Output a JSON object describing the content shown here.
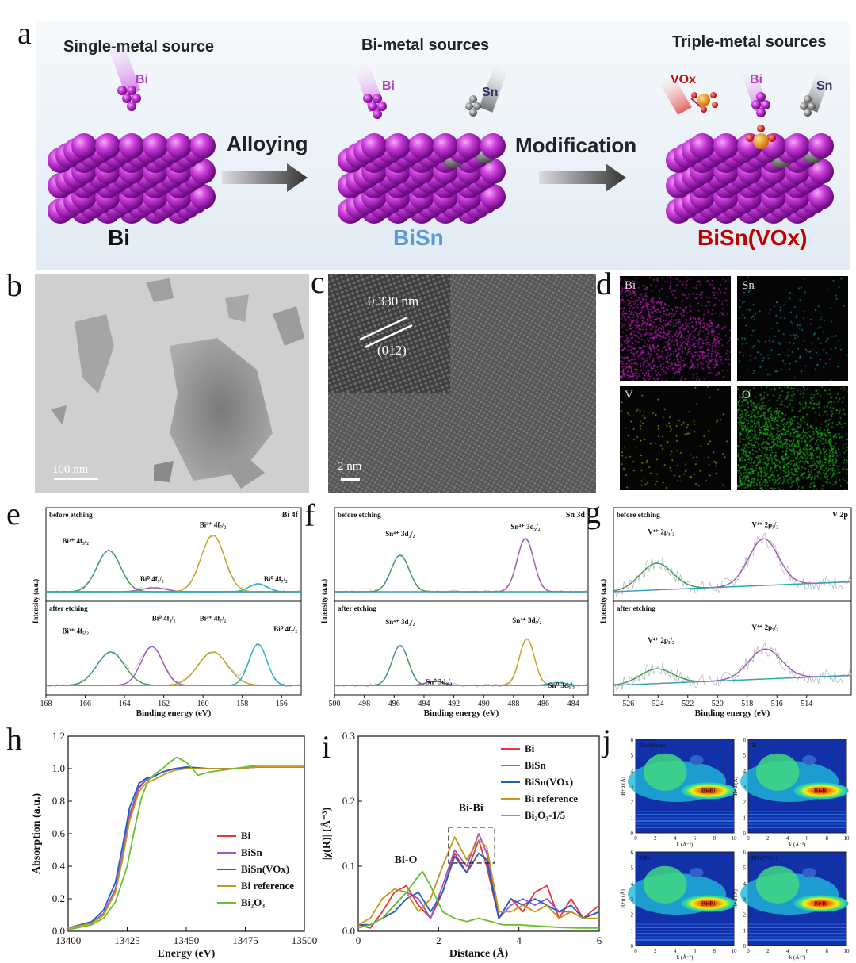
{
  "labels": {
    "a": "a",
    "b": "b",
    "c": "c",
    "d": "d",
    "e": "e",
    "f": "f",
    "g": "g",
    "h": "h",
    "i": "i",
    "j": "j"
  },
  "scheme": {
    "titles": [
      "Single-metal source",
      "Bi-metal sources",
      "Triple-metal sources"
    ],
    "arrows": [
      "Alloying",
      "Modification"
    ],
    "materials": [
      {
        "name": "Bi",
        "color": "#1a1a1a"
      },
      {
        "name": "BiSn",
        "color": "#5b9bd5"
      },
      {
        "name": "BiSn(VOx)",
        "color": "#c00000"
      }
    ],
    "sources": {
      "bi": "Bi",
      "sn": "Sn",
      "vox": "VOx"
    }
  },
  "tem": {
    "scale_b": "100 nm",
    "scale_c": "2 nm",
    "d_spacing": "0.330 nm",
    "plane": "(012)"
  },
  "eds": {
    "elements": [
      "Bi",
      "Sn",
      "V",
      "O"
    ],
    "colors": [
      "#d020d0",
      "#1aa8b8",
      "#c8c020",
      "#20c020"
    ]
  },
  "xps": {
    "ylabel": "Intensity (a.u.)",
    "xlabel": "Binding energy (eV)",
    "states": [
      "before etching",
      "after etching"
    ],
    "e": {
      "tag": "Bi 4f",
      "xlim": [
        168,
        155
      ],
      "ticks": [
        168,
        166,
        164,
        162,
        160,
        158,
        156
      ],
      "before_peaks": [
        {
          "label": "Bi³⁺ 4f₅/₂",
          "color": "#3a9a5a"
        },
        {
          "label": "Bi⁰ 4f₅/₂",
          "color": "#9b59b6"
        },
        {
          "label": "Bi³⁺ 4f₇/₂",
          "color": "#c8a020"
        },
        {
          "label": "Bi⁰ 4f₇/₂",
          "color": "#20b0c0"
        }
      ],
      "after_peaks": [
        {
          "label": "Bi³⁺ 4f₅/₂",
          "color": "#3a9a5a"
        },
        {
          "label": "Bi⁰ 4f₅/₂",
          "color": "#9b59b6"
        },
        {
          "label": "Bi³⁺ 4f₇/₂",
          "color": "#c8a020"
        },
        {
          "label": "Bi⁰ 4f₇/₂",
          "color": "#20b0c0"
        }
      ]
    },
    "f": {
      "tag": "Sn 3d",
      "xlim": [
        500,
        483
      ],
      "ticks": [
        500,
        498,
        496,
        494,
        492,
        490,
        488,
        486,
        484
      ],
      "before_peaks": [
        {
          "label": "Sn⁴⁺ 3d₃/₂",
          "color": "#3a9a5a"
        },
        {
          "label": "Sn⁴⁺ 3d₅/₂",
          "color": "#9b59b6"
        }
      ],
      "after_peaks": [
        {
          "label": "Sn⁴⁺ 3d₃/₂",
          "color": "#3a9a5a"
        },
        {
          "label": "Sn⁴⁺ 3d₅/₂",
          "color": "#9b59b6"
        },
        {
          "label": "Sn⁰ 3d₃/₂",
          "color": "#c8a020"
        },
        {
          "label": "Sn⁰ 3d₅/₂",
          "color": "#20b0c0"
        }
      ]
    },
    "g": {
      "tag": "V 2p",
      "xlim": [
        527,
        511
      ],
      "ticks": [
        526,
        524,
        522,
        520,
        518,
        516,
        514
      ],
      "before_peaks": [
        {
          "label": "V⁴⁺ 2p₁/₂",
          "color": "#3a9a5a"
        },
        {
          "label": "V⁴⁺ 2p₃/₂",
          "color": "#9b59b6"
        }
      ],
      "after_peaks": [
        {
          "label": "V⁴⁺ 2p₁/₂",
          "color": "#3a9a5a"
        },
        {
          "label": "V⁴⁺ 2p₃/₂",
          "color": "#9b59b6"
        }
      ]
    }
  },
  "chart_data": [
    {
      "type": "line",
      "panel": "h",
      "xlabel": "Energy (eV)",
      "ylabel": "Absorption (a.u.)",
      "xlim": [
        13400,
        13500
      ],
      "ylim": [
        0,
        1.2
      ],
      "xticks": [
        13400,
        13425,
        13450,
        13475,
        13500
      ],
      "yticks": [
        0.0,
        0.2,
        0.4,
        0.6,
        0.8,
        1.0,
        1.2
      ],
      "legend_position": "lower-right",
      "series": [
        {
          "name": "Bi",
          "color": "#e8333a",
          "x": [
            13400,
            13410,
            13415,
            13420,
            13423,
            13426,
            13430,
            13433,
            13436,
            13440,
            13445,
            13450,
            13460,
            13470,
            13480,
            13490,
            13500
          ],
          "y": [
            0.02,
            0.05,
            0.1,
            0.25,
            0.45,
            0.7,
            0.88,
            0.93,
            0.95,
            0.98,
            1.0,
            1.0,
            1.0,
            1.0,
            1.01,
            1.01,
            1.01
          ]
        },
        {
          "name": "BiSn",
          "color": "#9b59d0",
          "x": [
            13400,
            13410,
            13415,
            13420,
            13423,
            13426,
            13430,
            13433,
            13436,
            13440,
            13445,
            13450,
            13460,
            13470,
            13480,
            13490,
            13500
          ],
          "y": [
            0.02,
            0.05,
            0.11,
            0.26,
            0.47,
            0.72,
            0.89,
            0.93,
            0.95,
            0.98,
            1.0,
            1.0,
            1.0,
            1.0,
            1.01,
            1.01,
            1.01
          ]
        },
        {
          "name": "BiSn(VOx)",
          "color": "#2060c0",
          "x": [
            13400,
            13410,
            13415,
            13420,
            13423,
            13426,
            13430,
            13433,
            13436,
            13440,
            13445,
            13450,
            13460,
            13470,
            13480,
            13490,
            13500
          ],
          "y": [
            0.02,
            0.06,
            0.13,
            0.3,
            0.52,
            0.76,
            0.91,
            0.94,
            0.95,
            0.98,
            1.0,
            1.01,
            1.0,
            1.0,
            1.01,
            1.01,
            1.01
          ]
        },
        {
          "name": "Bi reference",
          "color": "#c8961a",
          "x": [
            13400,
            13410,
            13415,
            13420,
            13423,
            13426,
            13430,
            13433,
            13436,
            13440,
            13445,
            13450,
            13460,
            13470,
            13480,
            13490,
            13500
          ],
          "y": [
            0.02,
            0.05,
            0.1,
            0.24,
            0.44,
            0.68,
            0.86,
            0.91,
            0.93,
            0.96,
            0.99,
            1.0,
            1.0,
            1.0,
            1.01,
            1.01,
            1.01
          ]
        },
        {
          "name": "Bi₂O₃",
          "color": "#6abf2a",
          "x": [
            13400,
            13410,
            13415,
            13420,
            13425,
            13428,
            13431,
            13434,
            13437,
            13440,
            13443,
            13446,
            13450,
            13455,
            13460,
            13470,
            13480,
            13490,
            13500
          ],
          "y": [
            0.01,
            0.04,
            0.08,
            0.18,
            0.4,
            0.62,
            0.82,
            0.93,
            0.97,
            1.0,
            1.04,
            1.07,
            1.04,
            0.96,
            0.98,
            1.0,
            1.02,
            1.02,
            1.02
          ]
        }
      ]
    },
    {
      "type": "line",
      "panel": "i",
      "xlabel": "Distance (Å)",
      "ylabel": "|χ(R)| (Å⁻³)",
      "xlim": [
        0,
        6
      ],
      "ylim": [
        0,
        0.3
      ],
      "xticks": [
        0,
        2,
        4,
        6
      ],
      "yticks": [
        0.0,
        0.1,
        0.2,
        0.3
      ],
      "annotations": [
        "Bi-O",
        "Bi-Bi"
      ],
      "legend_position": "top-right",
      "series": [
        {
          "name": "Bi",
          "color": "#e8333a",
          "x": [
            0,
            0.3,
            0.6,
            0.9,
            1.2,
            1.5,
            1.8,
            2.1,
            2.4,
            2.7,
            3.0,
            3.2,
            3.5,
            3.8,
            4.1,
            4.4,
            4.7,
            5.0,
            5.3,
            5.6,
            6.0
          ],
          "y": [
            0.01,
            0.005,
            0.03,
            0.06,
            0.07,
            0.04,
            0.02,
            0.06,
            0.12,
            0.09,
            0.14,
            0.1,
            0.02,
            0.05,
            0.03,
            0.06,
            0.07,
            0.02,
            0.05,
            0.02,
            0.04
          ]
        },
        {
          "name": "BiSn",
          "color": "#9b59d0",
          "x": [
            0,
            0.3,
            0.6,
            0.9,
            1.2,
            1.5,
            1.8,
            2.1,
            2.4,
            2.7,
            3.0,
            3.2,
            3.5,
            3.8,
            4.1,
            4.4,
            4.7,
            5.0,
            5.3,
            5.6,
            6.0
          ],
          "y": [
            0.01,
            0.01,
            0.02,
            0.04,
            0.06,
            0.05,
            0.02,
            0.07,
            0.125,
            0.1,
            0.15,
            0.12,
            0.02,
            0.04,
            0.05,
            0.04,
            0.05,
            0.03,
            0.03,
            0.02,
            0.03
          ]
        },
        {
          "name": "BiSn(VOx)",
          "color": "#2060c0",
          "x": [
            0,
            0.3,
            0.6,
            0.9,
            1.2,
            1.5,
            1.8,
            2.1,
            2.4,
            2.7,
            3.0,
            3.2,
            3.5,
            3.8,
            4.1,
            4.4,
            4.7,
            5.0,
            5.3,
            5.6,
            6.0
          ],
          "y": [
            0.01,
            0.01,
            0.02,
            0.03,
            0.05,
            0.06,
            0.03,
            0.06,
            0.115,
            0.09,
            0.12,
            0.11,
            0.02,
            0.05,
            0.04,
            0.05,
            0.04,
            0.03,
            0.04,
            0.02,
            0.03
          ]
        },
        {
          "name": "Bi reference",
          "color": "#c8961a",
          "x": [
            0,
            0.3,
            0.6,
            0.9,
            1.2,
            1.5,
            1.8,
            2.1,
            2.4,
            2.7,
            3.0,
            3.2,
            3.5,
            3.8,
            4.1,
            4.4,
            4.7,
            5.0,
            5.3,
            5.6,
            6.0
          ],
          "y": [
            0.01,
            0.02,
            0.05,
            0.065,
            0.06,
            0.03,
            0.05,
            0.1,
            0.145,
            0.11,
            0.14,
            0.13,
            0.03,
            0.03,
            0.04,
            0.03,
            0.04,
            0.02,
            0.03,
            0.02,
            0.02
          ]
        },
        {
          "name": "Bi₂O₃-1/5",
          "color": "#6abf2a",
          "x": [
            0,
            0.3,
            0.6,
            0.9,
            1.2,
            1.5,
            1.6,
            1.8,
            2.1,
            2.4,
            2.7,
            3.0,
            3.3,
            3.6,
            4.0,
            4.5,
            5.0,
            5.5,
            6.0
          ],
          "y": [
            0.005,
            0.01,
            0.02,
            0.04,
            0.06,
            0.085,
            0.092,
            0.07,
            0.03,
            0.02,
            0.015,
            0.02,
            0.015,
            0.01,
            0.01,
            0.008,
            0.006,
            0.005,
            0.005
          ]
        }
      ]
    }
  ],
  "wt": {
    "xlabel": "k (Å⁻¹)",
    "ylabel": "R+α (Å)",
    "peak_label": "Bi-Bi",
    "titles": [
      "Bi reference",
      "Bi",
      "BiSn",
      "BiSn(VOx)"
    ],
    "xticks": [
      0,
      2,
      4,
      6,
      8,
      10
    ],
    "yticks": [
      0,
      1,
      2,
      3,
      4,
      5,
      6
    ]
  }
}
